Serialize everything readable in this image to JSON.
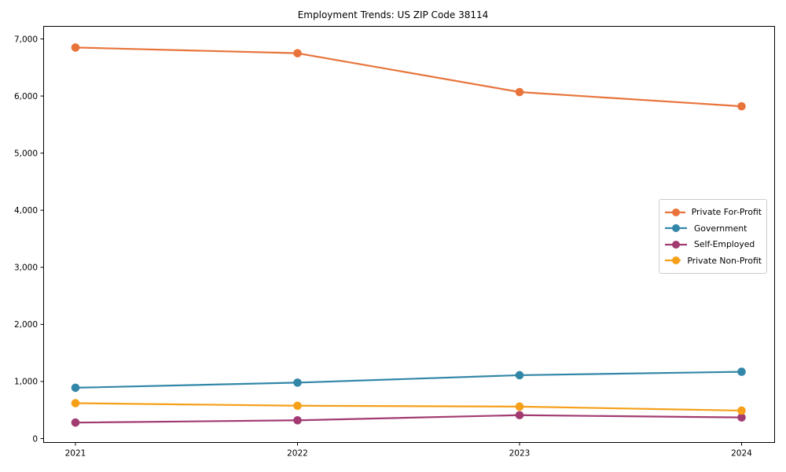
{
  "figure": {
    "background": "#ffffff",
    "spine_color": "#000000"
  },
  "chart_data": {
    "type": "line",
    "title": "Employment Trends: US ZIP Code 38114",
    "x": [
      2021,
      2022,
      2023,
      2024
    ],
    "xticklabels": [
      "2021",
      "2022",
      "2023",
      "2024"
    ],
    "yticks": [
      0,
      1000,
      2000,
      3000,
      4000,
      5000,
      6000,
      7000
    ],
    "yticklabels": [
      "0",
      "1,000",
      "2,000",
      "3,000",
      "4,000",
      "5,000",
      "6,000",
      "7,000"
    ],
    "ylim": [
      0,
      7000
    ],
    "xlabel": "",
    "ylabel": "",
    "grid": false,
    "marker": "circle",
    "legend_position": "center right",
    "series": [
      {
        "name": "Private For-Profit",
        "color": "#E8743B",
        "values": [
          6850,
          6750,
          6070,
          5820
        ]
      },
      {
        "name": "Government",
        "color": "#3287A8",
        "values": [
          890,
          980,
          1110,
          1170
        ]
      },
      {
        "name": "Self-Employed",
        "color": "#A23B72",
        "values": [
          280,
          320,
          410,
          370
        ]
      },
      {
        "name": "Private Non-Profit",
        "color": "#F6A01A",
        "values": [
          620,
          575,
          560,
          490
        ]
      }
    ]
  }
}
